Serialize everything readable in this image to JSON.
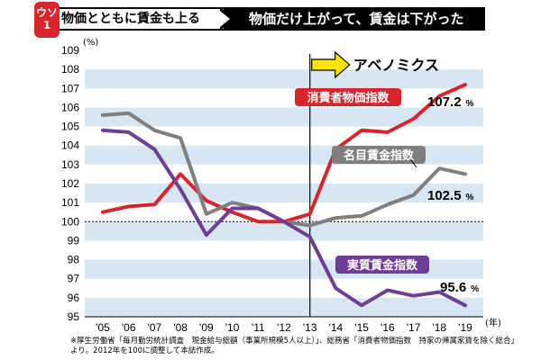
{
  "header": {
    "badge_top": "ウソ",
    "badge_bottom": "1",
    "left_text": "物価とともに賃金も上る",
    "right_text": "物価だけ上がって、賃金は下がった"
  },
  "footnote": {
    "line1": "※厚生労働省「毎月勤労統計調査　現金給与総額（事業所規模5人以上）」、総務省「消費者物価指数　持家の帰属家賃を除く総合」",
    "line2": "より。2012年を100に調整して本誌作成。"
  },
  "colors": {
    "cpi": "#d9242c",
    "nominal": "#7f7f7f",
    "real": "#6f3c96",
    "band": "#d6e6f3",
    "arrow": "#ffe500"
  },
  "chart_data": {
    "type": "line",
    "x": [
      "'05",
      "'06",
      "'07",
      "'08",
      "'09",
      "'10",
      "'11",
      "'12",
      "'13",
      "'14",
      "'15",
      "'16",
      "'17",
      "'18",
      "'19"
    ],
    "xunit": "(年)",
    "yunit": "(%)",
    "ylim": [
      95,
      109
    ],
    "yticks": [
      95,
      96,
      97,
      98,
      99,
      100,
      101,
      102,
      103,
      104,
      105,
      106,
      107,
      108,
      109
    ],
    "reference_line": 100,
    "marker_label": "アベノミクス",
    "marker_position": 8,
    "series": [
      {
        "name": "消費者物価指数",
        "key": "cpi",
        "end_label": "107.2",
        "values": [
          100.5,
          100.8,
          100.9,
          102.5,
          101.1,
          100.5,
          100.0,
          100.0,
          100.4,
          103.8,
          104.8,
          104.7,
          105.4,
          106.6,
          107.2
        ]
      },
      {
        "name": "名目賃金指数",
        "key": "nominal",
        "end_label": "102.5",
        "values": [
          105.6,
          105.7,
          104.8,
          104.4,
          100.4,
          101.0,
          100.7,
          100.0,
          99.8,
          100.2,
          100.3,
          100.9,
          101.4,
          102.8,
          102.5
        ]
      },
      {
        "name": "実質賃金指数",
        "key": "real",
        "end_label": "95.6",
        "values": [
          104.8,
          104.7,
          103.8,
          101.7,
          99.3,
          100.7,
          100.7,
          100.0,
          99.2,
          96.5,
          95.6,
          96.4,
          96.1,
          96.3,
          95.6
        ]
      }
    ]
  }
}
